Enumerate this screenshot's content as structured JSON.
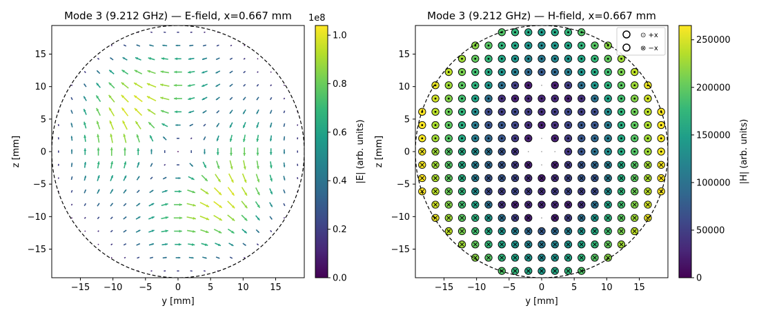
{
  "chart_data": [
    {
      "type": "quiver",
      "title": "Mode 3 (9.212 GHz) — E-field, x=0.667 mm",
      "xlabel": "y [mm]",
      "ylabel": "z [mm]",
      "xlim": [
        -19.4,
        19.4
      ],
      "ylim": [
        -19.4,
        19.4
      ],
      "xticks": [
        "−15",
        "−10",
        "−5",
        "0",
        "5",
        "10",
        "15"
      ],
      "yticks": [
        "15",
        "10",
        "5",
        "0",
        "−5",
        "−10",
        "−15"
      ],
      "boundary": {
        "shape": "circle",
        "radius": 19.4,
        "style": "dashed"
      },
      "grid_step": 2.04,
      "field_model": "E-field arrows, direction tangential to a two-lobe pattern, magnitude peaking along the anti-diagonal lobes",
      "colorbar": {
        "label": "|E| (arb. units)",
        "range": [
          0,
          1.04
        ],
        "ticks": [
          "0.0",
          "0.2",
          "0.4",
          "0.6",
          "0.8",
          "1.0"
        ],
        "offset_text": "1e8",
        "colormap": "viridis"
      },
      "grid": false
    },
    {
      "type": "scatter",
      "title": "Mode 3 (9.212 GHz) — H-field, x=0.667 mm",
      "xlabel": "y [mm]",
      "ylabel": "z [mm]",
      "xlim": [
        -19.4,
        19.4
      ],
      "ylim": [
        -19.4,
        19.4
      ],
      "xticks": [
        "−15",
        "−10",
        "−5",
        "0",
        "5",
        "10",
        "15"
      ],
      "yticks": [
        "15",
        "10",
        "5",
        "0",
        "−5",
        "−10",
        "−15"
      ],
      "boundary": {
        "shape": "circle",
        "radius": 19.4,
        "style": "dashed"
      },
      "grid_step": 2.04,
      "field_model": "H_x out of plane: ⊙ (+x) in upper half, ⊗ (−x) in lower half",
      "legend": {
        "placement": "top-right",
        "entries": [
          "⊙ +x",
          "⊗ −x"
        ]
      },
      "colorbar": {
        "label": "|H| (arb. units)",
        "range": [
          0,
          265000
        ],
        "ticks": [
          "0",
          "50000",
          "100000",
          "150000",
          "200000",
          "250000"
        ],
        "colormap": "viridis"
      },
      "grid": false
    }
  ],
  "colors": {
    "viridis": [
      "#440154",
      "#482878",
      "#3e4989",
      "#31688e",
      "#26828e",
      "#1f9e89",
      "#35b779",
      "#6ece58",
      "#b5de2b",
      "#fde725"
    ],
    "axis": "#000000",
    "marker_edge": "#000000"
  }
}
